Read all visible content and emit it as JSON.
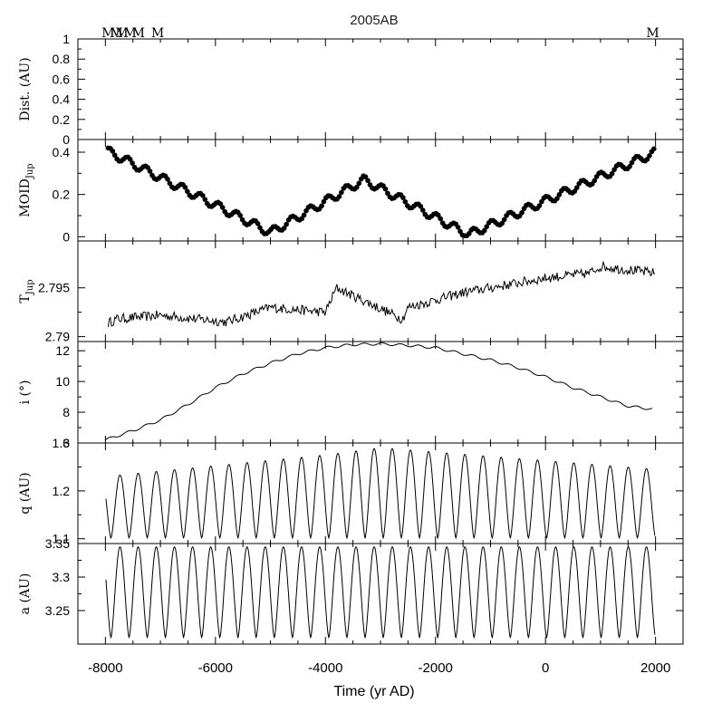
{
  "chart_data": {
    "type": "stacked-line-panels",
    "title": "2005AB",
    "xlabel": "Time (yr AD)",
    "xlim": [
      -8500,
      2500
    ],
    "x_ticks": [
      -8000,
      -6000,
      -4000,
      -2000,
      0,
      2000
    ],
    "x_tick_labels": [
      "-8000",
      "-6000",
      "-4000",
      "-2000",
      "0",
      "2000"
    ],
    "panels": [
      {
        "id": "dist",
        "ylabel": "Dist. (AU)",
        "ylim": [
          0,
          1
        ],
        "y_ticks": [
          0,
          0.2,
          0.4,
          0.6,
          0.8,
          1
        ],
        "y_tick_labels": [
          "0",
          "0.2",
          "0.4",
          "0.6",
          "0.8",
          "1"
        ],
        "markers": {
          "label": "M",
          "x": [
            -7950,
            -7800,
            -7700,
            -7550,
            -7400,
            -7050,
            1950
          ]
        }
      },
      {
        "id": "moid",
        "ylabel": "MOID",
        "ylabel_sub": "Jup",
        "ylim": [
          -0.02,
          0.46
        ],
        "y_ticks": [
          0,
          0.2,
          0.4
        ],
        "y_tick_labels": [
          "0",
          "0.2",
          "0.4"
        ],
        "style": "points",
        "trend": {
          "x": [
            -8000,
            -5000,
            -3300,
            -1400,
            2000
          ],
          "y": [
            0.41,
            0.02,
            0.27,
            0.01,
            0.4
          ]
        },
        "wiggle": {
          "amplitude": 0.02,
          "period": 330
        }
      },
      {
        "id": "tjup",
        "ylabel": "T",
        "ylabel_sub": "Jup",
        "ylim": [
          2.7895,
          2.7998
        ],
        "y_ticks": [
          2.79,
          2.795
        ],
        "y_tick_labels": [
          "2.79",
          "2.795"
        ],
        "style": "noisy-line",
        "trend": {
          "x": [
            -7950,
            -7800,
            -7000,
            -5800,
            -5000,
            -4000,
            -3800,
            -2600,
            -2500,
            -1500,
            0,
            800,
            1000,
            2000
          ],
          "y": [
            2.7914,
            2.7918,
            2.7922,
            2.7915,
            2.793,
            2.7925,
            2.795,
            2.7918,
            2.793,
            2.7945,
            2.796,
            2.7965,
            2.7972,
            2.7965
          ]
        },
        "noise": 0.0005
      },
      {
        "id": "inc",
        "ylabel": "i (°)",
        "ylim": [
          6,
          12.6
        ],
        "y_ticks": [
          6,
          8,
          10,
          12
        ],
        "y_tick_labels": [
          "6",
          "8",
          "10",
          "12"
        ],
        "style": "line",
        "trend": {
          "x": [
            -8000,
            -7500,
            -7000,
            -6500,
            -6000,
            -5500,
            -5000,
            -4500,
            -4000,
            -3500,
            -3000,
            -2500,
            -2000,
            -1500,
            -1000,
            -500,
            0,
            500,
            1000,
            1500,
            1950
          ],
          "y": [
            6.2,
            6.8,
            7.5,
            8.5,
            9.6,
            10.5,
            11.2,
            11.8,
            12.2,
            12.4,
            12.45,
            12.35,
            12.2,
            11.8,
            11.4,
            10.9,
            10.3,
            9.6,
            9.0,
            8.4,
            8.2
          ]
        },
        "wiggle": {
          "amplitude": 0.08,
          "period": 330
        }
      },
      {
        "id": "q",
        "ylabel": "q (AU)",
        "ylim": [
          1.09,
          1.3
        ],
        "y_ticks": [
          1.1,
          1.2,
          1.3
        ],
        "y_tick_labels": [
          "1.1",
          "1.2",
          "1.3"
        ],
        "style": "oscillation",
        "period": 330,
        "phase_x": -7900,
        "low": 1.102,
        "high": {
          "x": [
            -8000,
            -4000,
            -3000,
            2000
          ],
          "y": [
            1.23,
            1.275,
            1.29,
            1.245
          ]
        }
      },
      {
        "id": "a",
        "ylabel": "a (AU)",
        "ylim": [
          3.2,
          3.35
        ],
        "y_ticks": [
          3.25,
          3.3,
          3.35
        ],
        "y_tick_labels": [
          "3.25",
          "3.3",
          "3.35"
        ],
        "style": "oscillation",
        "period": 330,
        "phase_x": -7900,
        "low": 3.21,
        "high": {
          "x": [
            -8000,
            2000
          ],
          "y": [
            3.345,
            3.345
          ]
        }
      }
    ]
  }
}
